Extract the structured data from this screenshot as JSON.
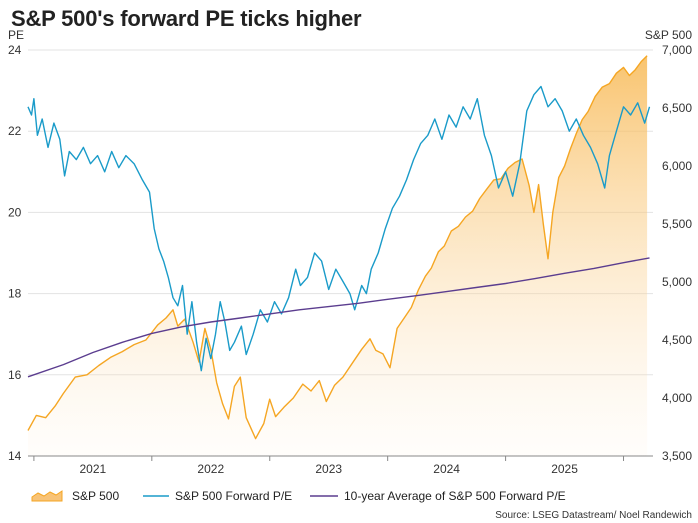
{
  "chart_data": {
    "type": "line",
    "title": "S&P 500's forward PE ticks higher",
    "source": "Source: LSEG Datastream/ Noel Randewich",
    "left_axis": {
      "label": "PE",
      "ylim": [
        14,
        24
      ],
      "ticks": [
        14,
        16,
        18,
        20,
        22,
        24
      ],
      "tick_labels": [
        "14",
        "16",
        "18",
        "20",
        "22",
        "24"
      ]
    },
    "right_axis": {
      "label": "S&P 500",
      "ylim": [
        3500,
        7000
      ],
      "ticks": [
        3500,
        4000,
        4500,
        5000,
        5500,
        6000,
        6500,
        7000
      ],
      "tick_labels": [
        "3,500",
        "4,000",
        "4,500",
        "5,000",
        "5,500",
        "6,000",
        "6,500",
        "7,000"
      ]
    },
    "x_axis": {
      "range": [
        2020.45,
        2025.75
      ],
      "ticks": [
        2020.5,
        2021.5,
        2022.5,
        2023.5,
        2024.5,
        2025.5
      ],
      "tick_labels": [
        "2021",
        "2022",
        "2023",
        "2024",
        "2025",
        ""
      ],
      "label_positions": [
        2021.0,
        2022.0,
        2023.0,
        2024.0,
        2025.0
      ]
    },
    "grid": "horizontal",
    "legend_position": "bottom",
    "series": [
      {
        "name": "S&P 500",
        "axis": "right",
        "style": "area",
        "color": "#F5A623",
        "points": [
          [
            2020.45,
            3720
          ],
          [
            2020.52,
            3850
          ],
          [
            2020.6,
            3830
          ],
          [
            2020.68,
            3930
          ],
          [
            2020.75,
            4040
          ],
          [
            2020.85,
            4180
          ],
          [
            2020.95,
            4200
          ],
          [
            2021.05,
            4280
          ],
          [
            2021.15,
            4350
          ],
          [
            2021.25,
            4400
          ],
          [
            2021.35,
            4460
          ],
          [
            2021.45,
            4500
          ],
          [
            2021.55,
            4630
          ],
          [
            2021.62,
            4690
          ],
          [
            2021.68,
            4760
          ],
          [
            2021.72,
            4620
          ],
          [
            2021.78,
            4680
          ],
          [
            2021.85,
            4480
          ],
          [
            2021.9,
            4310
          ],
          [
            2021.95,
            4600
          ],
          [
            2022.0,
            4420
          ],
          [
            2022.05,
            4130
          ],
          [
            2022.1,
            3950
          ],
          [
            2022.15,
            3820
          ],
          [
            2022.2,
            4100
          ],
          [
            2022.25,
            4180
          ],
          [
            2022.3,
            3830
          ],
          [
            2022.38,
            3650
          ],
          [
            2022.45,
            3780
          ],
          [
            2022.5,
            3990
          ],
          [
            2022.55,
            3840
          ],
          [
            2022.62,
            3920
          ],
          [
            2022.7,
            4000
          ],
          [
            2022.78,
            4120
          ],
          [
            2022.85,
            4060
          ],
          [
            2022.92,
            4150
          ],
          [
            2022.98,
            3970
          ],
          [
            2023.05,
            4110
          ],
          [
            2023.12,
            4180
          ],
          [
            2023.2,
            4300
          ],
          [
            2023.28,
            4420
          ],
          [
            2023.35,
            4510
          ],
          [
            2023.4,
            4410
          ],
          [
            2023.46,
            4380
          ],
          [
            2023.52,
            4260
          ],
          [
            2023.58,
            4600
          ],
          [
            2023.64,
            4690
          ],
          [
            2023.7,
            4780
          ],
          [
            2023.76,
            4930
          ],
          [
            2023.82,
            5050
          ],
          [
            2023.87,
            5120
          ],
          [
            2023.93,
            5260
          ],
          [
            2023.98,
            5310
          ],
          [
            2024.04,
            5440
          ],
          [
            2024.1,
            5480
          ],
          [
            2024.16,
            5560
          ],
          [
            2024.22,
            5610
          ],
          [
            2024.28,
            5720
          ],
          [
            2024.34,
            5800
          ],
          [
            2024.4,
            5880
          ],
          [
            2024.46,
            5890
          ],
          [
            2024.52,
            5980
          ],
          [
            2024.58,
            6030
          ],
          [
            2024.64,
            6060
          ],
          [
            2024.7,
            5830
          ],
          [
            2024.74,
            5600
          ],
          [
            2024.78,
            5840
          ],
          [
            2024.82,
            5500
          ],
          [
            2024.86,
            5200
          ],
          [
            2024.9,
            5600
          ],
          [
            2024.95,
            5900
          ],
          [
            2025.0,
            6000
          ],
          [
            2025.05,
            6150
          ],
          [
            2025.1,
            6280
          ],
          [
            2025.15,
            6400
          ],
          [
            2025.2,
            6470
          ],
          [
            2025.26,
            6600
          ],
          [
            2025.32,
            6680
          ],
          [
            2025.38,
            6710
          ],
          [
            2025.44,
            6800
          ],
          [
            2025.5,
            6850
          ],
          [
            2025.55,
            6780
          ],
          [
            2025.6,
            6830
          ],
          [
            2025.65,
            6900
          ],
          [
            2025.7,
            6950
          ]
        ]
      },
      {
        "name": "S&P 500 Forward P/E",
        "axis": "left",
        "style": "line",
        "color": "#1A9BC9",
        "points": [
          [
            2020.45,
            22.6
          ],
          [
            2020.48,
            22.4
          ],
          [
            2020.5,
            22.8
          ],
          [
            2020.53,
            21.9
          ],
          [
            2020.57,
            22.3
          ],
          [
            2020.62,
            21.6
          ],
          [
            2020.67,
            22.2
          ],
          [
            2020.72,
            21.8
          ],
          [
            2020.76,
            20.9
          ],
          [
            2020.8,
            21.5
          ],
          [
            2020.86,
            21.3
          ],
          [
            2020.92,
            21.6
          ],
          [
            2020.98,
            21.2
          ],
          [
            2021.04,
            21.4
          ],
          [
            2021.1,
            21.0
          ],
          [
            2021.16,
            21.5
          ],
          [
            2021.22,
            21.1
          ],
          [
            2021.28,
            21.4
          ],
          [
            2021.35,
            21.2
          ],
          [
            2021.42,
            20.8
          ],
          [
            2021.48,
            20.5
          ],
          [
            2021.52,
            19.6
          ],
          [
            2021.56,
            19.1
          ],
          [
            2021.6,
            18.8
          ],
          [
            2021.64,
            18.4
          ],
          [
            2021.68,
            17.9
          ],
          [
            2021.72,
            17.7
          ],
          [
            2021.76,
            18.2
          ],
          [
            2021.8,
            17.0
          ],
          [
            2021.84,
            17.8
          ],
          [
            2021.88,
            16.8
          ],
          [
            2021.92,
            16.1
          ],
          [
            2021.96,
            16.9
          ],
          [
            2022.0,
            16.4
          ],
          [
            2022.04,
            17.0
          ],
          [
            2022.08,
            17.8
          ],
          [
            2022.12,
            17.3
          ],
          [
            2022.16,
            16.6
          ],
          [
            2022.2,
            16.8
          ],
          [
            2022.26,
            17.2
          ],
          [
            2022.3,
            16.5
          ],
          [
            2022.36,
            17.0
          ],
          [
            2022.42,
            17.6
          ],
          [
            2022.48,
            17.3
          ],
          [
            2022.54,
            17.8
          ],
          [
            2022.6,
            17.5
          ],
          [
            2022.66,
            17.9
          ],
          [
            2022.72,
            18.6
          ],
          [
            2022.76,
            18.2
          ],
          [
            2022.82,
            18.4
          ],
          [
            2022.88,
            19.0
          ],
          [
            2022.94,
            18.8
          ],
          [
            2023.0,
            18.1
          ],
          [
            2023.06,
            18.6
          ],
          [
            2023.12,
            18.3
          ],
          [
            2023.18,
            18.0
          ],
          [
            2023.22,
            17.6
          ],
          [
            2023.28,
            18.2
          ],
          [
            2023.32,
            18.0
          ],
          [
            2023.36,
            18.6
          ],
          [
            2023.42,
            19.0
          ],
          [
            2023.48,
            19.6
          ],
          [
            2023.54,
            20.1
          ],
          [
            2023.6,
            20.4
          ],
          [
            2023.66,
            20.8
          ],
          [
            2023.72,
            21.3
          ],
          [
            2023.78,
            21.7
          ],
          [
            2023.84,
            21.9
          ],
          [
            2023.9,
            22.3
          ],
          [
            2023.96,
            21.8
          ],
          [
            2024.02,
            22.4
          ],
          [
            2024.08,
            22.1
          ],
          [
            2024.14,
            22.6
          ],
          [
            2024.2,
            22.3
          ],
          [
            2024.26,
            22.8
          ],
          [
            2024.32,
            21.9
          ],
          [
            2024.38,
            21.4
          ],
          [
            2024.44,
            20.6
          ],
          [
            2024.5,
            21.0
          ],
          [
            2024.56,
            20.4
          ],
          [
            2024.62,
            21.2
          ],
          [
            2024.68,
            22.5
          ],
          [
            2024.74,
            22.9
          ],
          [
            2024.8,
            23.1
          ],
          [
            2024.86,
            22.6
          ],
          [
            2024.92,
            22.8
          ],
          [
            2024.98,
            22.5
          ],
          [
            2025.04,
            22.0
          ],
          [
            2025.1,
            22.3
          ],
          [
            2025.16,
            21.9
          ],
          [
            2025.22,
            21.6
          ],
          [
            2025.28,
            21.2
          ],
          [
            2025.34,
            20.6
          ],
          [
            2025.38,
            21.4
          ],
          [
            2025.44,
            22.0
          ],
          [
            2025.5,
            22.6
          ],
          [
            2025.56,
            22.4
          ],
          [
            2025.62,
            22.7
          ],
          [
            2025.68,
            22.2
          ],
          [
            2025.72,
            22.6
          ]
        ]
      },
      {
        "name": "10-year Average of S&P 500 Forward P/E",
        "axis": "left",
        "style": "line",
        "color": "#5B3D8F",
        "points": [
          [
            2020.45,
            15.95
          ],
          [
            2020.75,
            16.25
          ],
          [
            2021.0,
            16.55
          ],
          [
            2021.25,
            16.8
          ],
          [
            2021.5,
            17.02
          ],
          [
            2021.75,
            17.18
          ],
          [
            2022.0,
            17.3
          ],
          [
            2022.25,
            17.4
          ],
          [
            2022.5,
            17.5
          ],
          [
            2022.75,
            17.6
          ],
          [
            2023.0,
            17.68
          ],
          [
            2023.25,
            17.76
          ],
          [
            2023.5,
            17.86
          ],
          [
            2023.75,
            17.95
          ],
          [
            2024.0,
            18.05
          ],
          [
            2024.25,
            18.15
          ],
          [
            2024.5,
            18.25
          ],
          [
            2024.75,
            18.37
          ],
          [
            2025.0,
            18.5
          ],
          [
            2025.25,
            18.62
          ],
          [
            2025.5,
            18.76
          ],
          [
            2025.72,
            18.88
          ]
        ]
      }
    ]
  }
}
